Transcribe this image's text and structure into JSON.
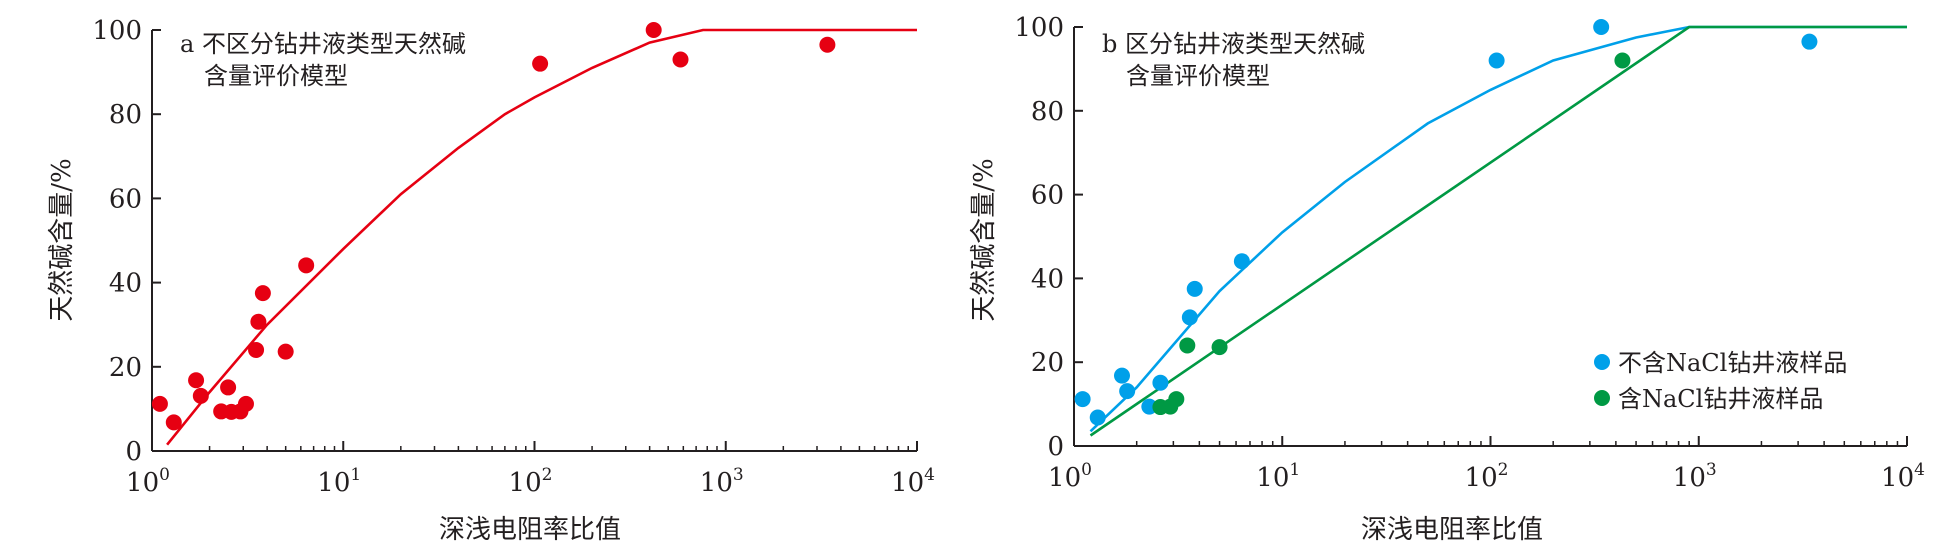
{
  "chart_data": [
    {
      "panel": "a",
      "type": "scatter",
      "title_line1": "a 不区分钻井液类型天然碱",
      "title_line2": "含量评价模型",
      "xlabel": "深浅电阻率比值",
      "ylabel": "天然碱含量/%",
      "x_scale": "log",
      "xlim": [
        1,
        10000
      ],
      "ylim": [
        0,
        100
      ],
      "x_ticks": [
        1,
        10,
        100,
        1000,
        10000
      ],
      "y_ticks": [
        0,
        20,
        40,
        60,
        80,
        100
      ],
      "grid": false,
      "series": [
        {
          "kind": "points",
          "color": "#e60012",
          "points": [
            [
              1.1,
              11.2
            ],
            [
              1.3,
              6.8
            ],
            [
              1.7,
              16.8
            ],
            [
              1.8,
              13.1
            ],
            [
              2.3,
              9.4
            ],
            [
              2.5,
              15.1
            ],
            [
              2.6,
              9.3
            ],
            [
              2.9,
              9.4
            ],
            [
              3.1,
              11.2
            ],
            [
              3.5,
              24.0
            ],
            [
              3.6,
              30.7
            ],
            [
              3.8,
              37.5
            ],
            [
              5.0,
              23.6
            ],
            [
              6.4,
              44.1
            ],
            [
              107,
              92.0
            ],
            [
              420,
              100.0
            ],
            [
              580,
              93.0
            ],
            [
              3400,
              96.5
            ]
          ]
        },
        {
          "kind": "curve",
          "color": "#e60012",
          "points": [
            [
              1.2,
              1.5
            ],
            [
              2,
              14
            ],
            [
              4,
              30
            ],
            [
              10,
              48
            ],
            [
              20,
              61
            ],
            [
              40,
              72
            ],
            [
              70,
              80
            ],
            [
              100,
              84
            ],
            [
              200,
              91
            ],
            [
              400,
              97
            ],
            [
              760,
              100
            ],
            [
              10000,
              100
            ]
          ]
        }
      ]
    },
    {
      "panel": "b",
      "type": "scatter",
      "title_line1": "b 区分钻井液类型天然碱",
      "title_line2": "含量评价模型",
      "xlabel": "深浅电阻率比值",
      "ylabel": "天然碱含量/%",
      "x_scale": "log",
      "xlim": [
        1,
        10000
      ],
      "ylim": [
        0,
        100
      ],
      "x_ticks": [
        1,
        10,
        100,
        1000,
        10000
      ],
      "y_ticks": [
        0,
        20,
        40,
        60,
        80,
        100
      ],
      "grid": false,
      "legend_position": "bottom-right",
      "series": [
        {
          "kind": "points",
          "name": "不含NaCl钻井液样品",
          "color": "#00a0e9",
          "points": [
            [
              1.1,
              11.2
            ],
            [
              1.3,
              6.8
            ],
            [
              1.7,
              16.8
            ],
            [
              1.8,
              13.1
            ],
            [
              2.3,
              9.4
            ],
            [
              2.6,
              15.1
            ],
            [
              3.6,
              30.7
            ],
            [
              3.8,
              37.5
            ],
            [
              6.4,
              44.1
            ],
            [
              107,
              92.0
            ],
            [
              340,
              100.0
            ],
            [
              3400,
              96.5
            ]
          ]
        },
        {
          "kind": "points",
          "name": "含NaCl钻井液样品",
          "color": "#009944",
          "points": [
            [
              2.6,
              9.3
            ],
            [
              2.9,
              9.4
            ],
            [
              3.1,
              11.2
            ],
            [
              3.5,
              24.0
            ],
            [
              5.0,
              23.6
            ],
            [
              430,
              92.0
            ]
          ]
        },
        {
          "kind": "curve",
          "color": "#00a0e9",
          "points": [
            [
              1.2,
              3.5
            ],
            [
              2,
              14
            ],
            [
              5,
              37
            ],
            [
              10,
              51
            ],
            [
              20,
              63
            ],
            [
              50,
              77
            ],
            [
              100,
              85
            ],
            [
              200,
              92
            ],
            [
              500,
              97.5
            ],
            [
              900,
              100
            ],
            [
              10000,
              100
            ]
          ]
        },
        {
          "kind": "curve",
          "color": "#009944",
          "points": [
            [
              1.2,
              2.5
            ],
            [
              900,
              100
            ],
            [
              10000,
              100
            ]
          ]
        }
      ]
    }
  ]
}
